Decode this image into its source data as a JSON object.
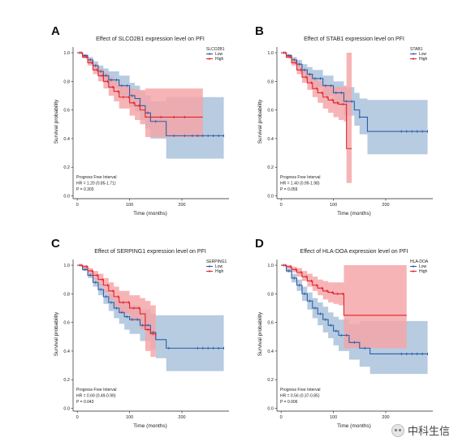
{
  "watermark": {
    "text": "中科生信"
  },
  "colors": {
    "low": "#2b5fa6",
    "low_band": "#a7bfda",
    "high": "#e2222b",
    "high_band": "#f5a3a6"
  },
  "chart_data": [
    {
      "type": "line",
      "panel": "A",
      "title": "Effect of SLCO2B1 expression level on PFI",
      "xlabel": "Time (months)",
      "ylabel": "Survival probability",
      "xticks": [
        0,
        100,
        200
      ],
      "yticks": [
        0.0,
        0.2,
        0.4,
        0.6,
        0.8,
        1.0
      ],
      "xlim": [
        -8,
        290
      ],
      "ylim": [
        -0.02,
        1.04
      ],
      "legend": {
        "title": "SLCO2B1",
        "position": "top-right",
        "entries": [
          "Low",
          "High"
        ]
      },
      "annotation": [
        "Progress Free Interval",
        "HR = 1.20 (0.85-1.71)",
        "P = 0.303"
      ],
      "series": [
        {
          "name": "Low",
          "color": "#2b5fa6",
          "band_color": "#a7bfda",
          "x": [
            0,
            10,
            20,
            30,
            40,
            50,
            60,
            80,
            100,
            110,
            120,
            130,
            140,
            170,
            205,
            280
          ],
          "y": [
            1.0,
            0.98,
            0.95,
            0.91,
            0.87,
            0.84,
            0.81,
            0.77,
            0.7,
            0.68,
            0.63,
            0.58,
            0.52,
            0.42,
            0.42,
            0.42
          ],
          "lower": [
            1.0,
            0.97,
            0.93,
            0.88,
            0.83,
            0.79,
            0.75,
            0.7,
            0.62,
            0.59,
            0.53,
            0.47,
            0.4,
            0.26,
            0.26,
            0.26
          ],
          "upper": [
            1.0,
            0.99,
            0.97,
            0.94,
            0.91,
            0.89,
            0.87,
            0.84,
            0.79,
            0.77,
            0.73,
            0.7,
            0.66,
            0.69,
            0.69,
            0.69
          ],
          "censor_x": [
            5,
            15,
            25,
            35,
            45,
            55,
            65,
            75,
            85,
            95,
            105,
            120,
            135,
            150,
            185,
            205,
            220,
            230,
            240,
            250,
            260,
            270,
            280
          ]
        },
        {
          "name": "High",
          "color": "#e2222b",
          "band_color": "#f5a3a6",
          "x": [
            0,
            10,
            20,
            30,
            40,
            50,
            60,
            70,
            80,
            100,
            110,
            120,
            130,
            240
          ],
          "y": [
            1.0,
            0.97,
            0.93,
            0.88,
            0.84,
            0.8,
            0.76,
            0.73,
            0.69,
            0.65,
            0.63,
            0.6,
            0.55,
            0.55
          ],
          "lower": [
            1.0,
            0.96,
            0.91,
            0.85,
            0.8,
            0.75,
            0.7,
            0.66,
            0.61,
            0.56,
            0.53,
            0.5,
            0.41,
            0.41
          ],
          "upper": [
            1.0,
            0.99,
            0.96,
            0.92,
            0.89,
            0.86,
            0.83,
            0.8,
            0.77,
            0.75,
            0.74,
            0.74,
            0.75,
            0.75
          ],
          "censor_x": [
            8,
            18,
            28,
            38,
            48,
            58,
            68,
            78,
            88,
            98,
            108,
            118,
            160,
            185,
            205
          ]
        }
      ]
    },
    {
      "type": "line",
      "panel": "B",
      "title": "Effect of STAB1 expression level on PFI",
      "xlabel": "Time (months)",
      "ylabel": "Survival probability",
      "xticks": [
        0,
        100,
        200
      ],
      "yticks": [
        0.0,
        0.2,
        0.4,
        0.6,
        0.8,
        1.0
      ],
      "xlim": [
        -8,
        290
      ],
      "ylim": [
        -0.02,
        1.04
      ],
      "legend": {
        "title": "STAB1",
        "position": "top-right",
        "entries": [
          "Low",
          "High"
        ]
      },
      "annotation": [
        "Progress Free Interval",
        "HR = 1.40 (0.99-1.98)",
        "P = 0.059"
      ],
      "series": [
        {
          "name": "Low",
          "color": "#2b5fa6",
          "band_color": "#a7bfda",
          "x": [
            0,
            10,
            20,
            30,
            40,
            50,
            60,
            80,
            100,
            120,
            140,
            150,
            165,
            280
          ],
          "y": [
            1.0,
            0.98,
            0.95,
            0.92,
            0.88,
            0.85,
            0.82,
            0.77,
            0.72,
            0.66,
            0.6,
            0.55,
            0.45,
            0.45
          ],
          "lower": [
            1.0,
            0.97,
            0.93,
            0.89,
            0.84,
            0.8,
            0.76,
            0.7,
            0.64,
            0.56,
            0.49,
            0.43,
            0.29,
            0.29
          ],
          "upper": [
            1.0,
            0.99,
            0.97,
            0.95,
            0.92,
            0.9,
            0.88,
            0.84,
            0.8,
            0.76,
            0.72,
            0.68,
            0.67,
            0.67
          ],
          "censor_x": [
            5,
            15,
            25,
            35,
            45,
            55,
            65,
            75,
            85,
            95,
            105,
            115,
            125,
            135,
            150,
            230,
            240,
            250,
            260,
            270,
            280
          ]
        },
        {
          "name": "High",
          "color": "#e2222b",
          "band_color": "#f5a3a6",
          "x": [
            0,
            10,
            20,
            30,
            40,
            50,
            60,
            70,
            80,
            90,
            100,
            110,
            120,
            125,
            135
          ],
          "y": [
            1.0,
            0.97,
            0.93,
            0.88,
            0.83,
            0.79,
            0.75,
            0.72,
            0.69,
            0.67,
            0.65,
            0.64,
            0.64,
            0.33,
            0.33
          ],
          "lower": [
            1.0,
            0.96,
            0.91,
            0.85,
            0.79,
            0.74,
            0.69,
            0.65,
            0.61,
            0.58,
            0.55,
            0.53,
            0.52,
            0.09,
            0.09
          ],
          "upper": [
            1.0,
            0.99,
            0.96,
            0.92,
            0.88,
            0.85,
            0.82,
            0.8,
            0.78,
            0.77,
            0.76,
            0.76,
            0.77,
            1.0,
            1.0
          ],
          "censor_x": [
            8,
            18,
            28,
            38,
            48,
            58,
            68,
            78,
            88,
            98,
            108,
            118
          ]
        }
      ]
    },
    {
      "type": "line",
      "panel": "C",
      "title": "Effect of SERPING1 expression level on PFI",
      "xlabel": "Time (months)",
      "ylabel": "Survival probability",
      "xticks": [
        0,
        100,
        200
      ],
      "yticks": [
        0.0,
        0.2,
        0.4,
        0.6,
        0.8,
        1.0
      ],
      "xlim": [
        -8,
        290
      ],
      "ylim": [
        -0.02,
        1.04
      ],
      "legend": {
        "title": "SERPING1",
        "position": "top-right",
        "entries": [
          "Low",
          "High"
        ]
      },
      "annotation": [
        "Progress Free Interval",
        "HR = 0.69 (0.49-0.99)",
        "P = 0.043"
      ],
      "series": [
        {
          "name": "Low",
          "color": "#2b5fa6",
          "band_color": "#a7bfda",
          "x": [
            0,
            10,
            20,
            30,
            40,
            50,
            60,
            70,
            80,
            90,
            100,
            120,
            140,
            150,
            170,
            280
          ],
          "y": [
            1.0,
            0.97,
            0.93,
            0.88,
            0.83,
            0.78,
            0.74,
            0.7,
            0.67,
            0.64,
            0.62,
            0.58,
            0.53,
            0.48,
            0.42,
            0.42
          ],
          "lower": [
            1.0,
            0.96,
            0.91,
            0.85,
            0.79,
            0.73,
            0.68,
            0.63,
            0.59,
            0.55,
            0.52,
            0.47,
            0.41,
            0.35,
            0.26,
            0.26
          ],
          "upper": [
            1.0,
            0.98,
            0.95,
            0.91,
            0.87,
            0.83,
            0.8,
            0.77,
            0.75,
            0.73,
            0.72,
            0.69,
            0.66,
            0.65,
            0.65,
            0.65
          ],
          "censor_x": [
            5,
            15,
            25,
            35,
            45,
            55,
            65,
            75,
            85,
            95,
            105,
            115,
            125,
            135,
            145,
            175,
            230,
            240,
            250,
            260,
            270,
            280
          ]
        },
        {
          "name": "High",
          "color": "#e2222b",
          "band_color": "#f5a3a6",
          "x": [
            0,
            10,
            20,
            30,
            40,
            50,
            60,
            70,
            80,
            100,
            120,
            130,
            140,
            150
          ],
          "y": [
            1.0,
            0.99,
            0.96,
            0.93,
            0.9,
            0.86,
            0.82,
            0.78,
            0.74,
            0.7,
            0.66,
            0.55,
            0.52,
            0.5
          ],
          "lower": [
            1.0,
            0.98,
            0.94,
            0.9,
            0.86,
            0.81,
            0.76,
            0.71,
            0.66,
            0.61,
            0.55,
            0.4,
            0.36,
            0.36
          ],
          "upper": [
            1.0,
            1.0,
            0.98,
            0.96,
            0.94,
            0.91,
            0.88,
            0.85,
            0.82,
            0.79,
            0.77,
            0.75,
            0.72,
            0.72
          ],
          "censor_x": [
            8,
            18,
            28,
            38,
            48,
            58,
            68,
            78,
            88,
            98,
            108,
            118,
            135,
            145
          ]
        }
      ]
    },
    {
      "type": "line",
      "panel": "D",
      "title": "Effect of HLA-DOA expression level on PFI",
      "xlabel": "Time (months)",
      "ylabel": "Survival probability",
      "xticks": [
        0,
        100,
        200
      ],
      "yticks": [
        0.0,
        0.2,
        0.4,
        0.6,
        0.8,
        1.0
      ],
      "xlim": [
        -8,
        290
      ],
      "ylim": [
        -0.02,
        1.04
      ],
      "legend": {
        "title": "HLA-DOA",
        "position": "top-right",
        "entries": [
          "Low",
          "High"
        ]
      },
      "annotation": [
        "Progress Free Interval",
        "HR = 0.56 (0.37-0.85)",
        "P = 0.006"
      ],
      "series": [
        {
          "name": "Low",
          "color": "#2b5fa6",
          "band_color": "#a7bfda",
          "x": [
            0,
            10,
            20,
            30,
            40,
            50,
            60,
            70,
            80,
            90,
            100,
            110,
            130,
            150,
            170,
            280
          ],
          "y": [
            1.0,
            0.96,
            0.91,
            0.86,
            0.8,
            0.75,
            0.7,
            0.66,
            0.62,
            0.58,
            0.54,
            0.51,
            0.46,
            0.42,
            0.38,
            0.38
          ],
          "lower": [
            1.0,
            0.95,
            0.88,
            0.82,
            0.75,
            0.69,
            0.63,
            0.58,
            0.53,
            0.49,
            0.44,
            0.4,
            0.34,
            0.29,
            0.24,
            0.24
          ],
          "upper": [
            1.0,
            0.98,
            0.94,
            0.9,
            0.85,
            0.81,
            0.77,
            0.74,
            0.71,
            0.67,
            0.64,
            0.62,
            0.59,
            0.61,
            0.61,
            0.61
          ],
          "censor_x": [
            5,
            15,
            25,
            35,
            45,
            55,
            65,
            75,
            85,
            95,
            105,
            115,
            125,
            140,
            160,
            230,
            240,
            250,
            260,
            270,
            280
          ]
        },
        {
          "name": "High",
          "color": "#e2222b",
          "band_color": "#f5a3a6",
          "x": [
            0,
            10,
            20,
            30,
            40,
            50,
            60,
            70,
            80,
            90,
            100,
            110,
            120,
            240
          ],
          "y": [
            1.0,
            0.99,
            0.97,
            0.95,
            0.92,
            0.89,
            0.86,
            0.84,
            0.82,
            0.81,
            0.8,
            0.8,
            0.65,
            0.65
          ],
          "lower": [
            1.0,
            0.98,
            0.95,
            0.92,
            0.89,
            0.85,
            0.82,
            0.79,
            0.76,
            0.74,
            0.73,
            0.72,
            0.42,
            0.42
          ],
          "upper": [
            1.0,
            1.0,
            0.99,
            0.98,
            0.96,
            0.94,
            0.92,
            0.9,
            0.89,
            0.88,
            0.88,
            0.88,
            1.0,
            1.0
          ],
          "censor_x": [
            8,
            18,
            28,
            38,
            48,
            58,
            68,
            78,
            88,
            98,
            108,
            118
          ]
        }
      ]
    }
  ]
}
